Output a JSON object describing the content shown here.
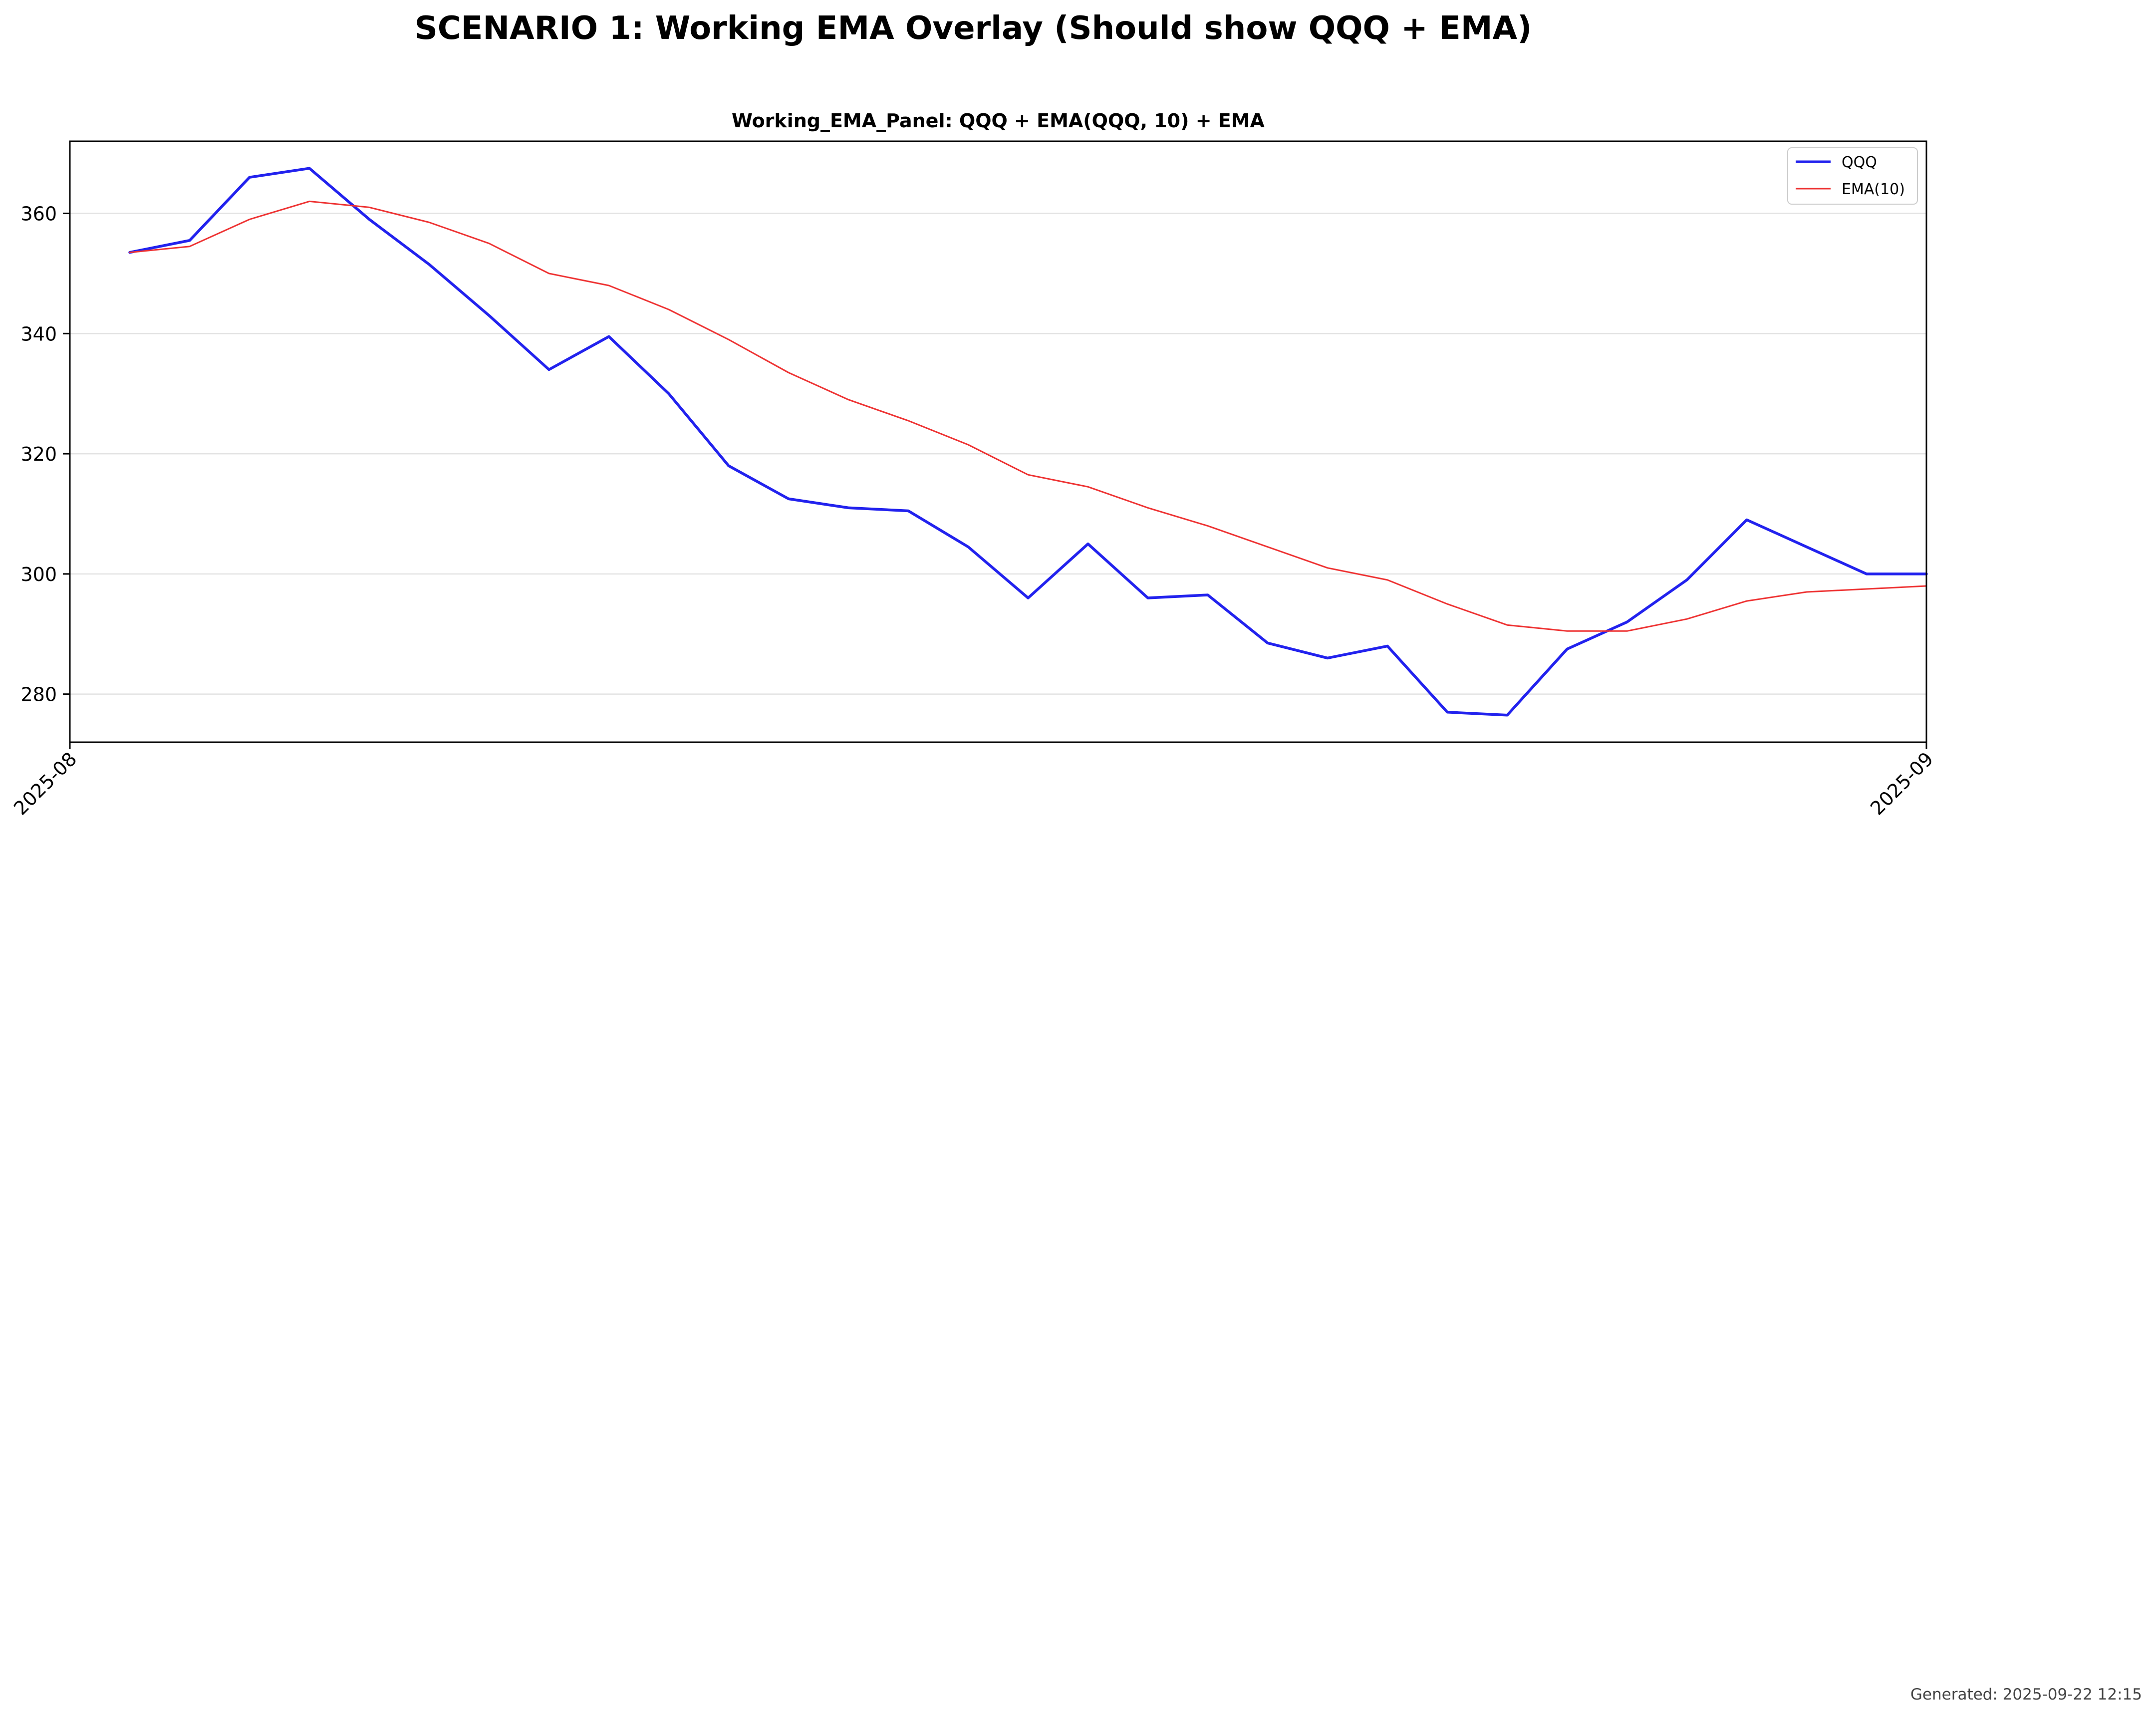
{
  "figure": {
    "suptitle": "SCENARIO 1: Working EMA Overlay (Should show QQQ + EMA)",
    "footer": "Generated: 2025-09-22 12:15"
  },
  "chart_data": {
    "type": "line",
    "title": "Working_EMA_Panel: QQQ + EMA(QQQ, 10) + EMA",
    "xlabel": "",
    "ylabel": "",
    "x_axis_type": "date",
    "xlim": [
      "2025-08-01",
      "2025-09-01"
    ],
    "ylim": [
      272,
      372
    ],
    "x_ticks": [
      "2025-08",
      "2025-09"
    ],
    "y_ticks": [
      280,
      300,
      320,
      340,
      360
    ],
    "grid": "horizontal",
    "legend": "top-right",
    "x": [
      "2025-08-02",
      "2025-08-03",
      "2025-08-04",
      "2025-08-05",
      "2025-08-06",
      "2025-08-07",
      "2025-08-08",
      "2025-08-09",
      "2025-08-10",
      "2025-08-11",
      "2025-08-12",
      "2025-08-13",
      "2025-08-14",
      "2025-08-15",
      "2025-08-16",
      "2025-08-17",
      "2025-08-18",
      "2025-08-19",
      "2025-08-20",
      "2025-08-21",
      "2025-08-22",
      "2025-08-23",
      "2025-08-24",
      "2025-08-25",
      "2025-08-26",
      "2025-08-27",
      "2025-08-28",
      "2025-08-29",
      "2025-08-30",
      "2025-08-31",
      "2025-09-01"
    ],
    "series": [
      {
        "name": "QQQ",
        "color": "#2222ee",
        "values": [
          353.5,
          355.5,
          366,
          367.5,
          359,
          351.5,
          343,
          334,
          339.5,
          330,
          318,
          312.5,
          311,
          310.5,
          304.5,
          296,
          305,
          296,
          296.5,
          288.5,
          286,
          288,
          277,
          276.5,
          287.5,
          292,
          299,
          309,
          304.5,
          300,
          300
        ]
      },
      {
        "name": "EMA(10)",
        "color": "#ee3333",
        "values": [
          353.5,
          354.5,
          359,
          362,
          361,
          358.5,
          355,
          350,
          348,
          344,
          339,
          333.5,
          329,
          325.5,
          321.5,
          316.5,
          314.5,
          311,
          308,
          304.5,
          301,
          299,
          295,
          291.5,
          290.5,
          290.5,
          292.5,
          295.5,
          297,
          297.5,
          298
        ]
      }
    ]
  }
}
